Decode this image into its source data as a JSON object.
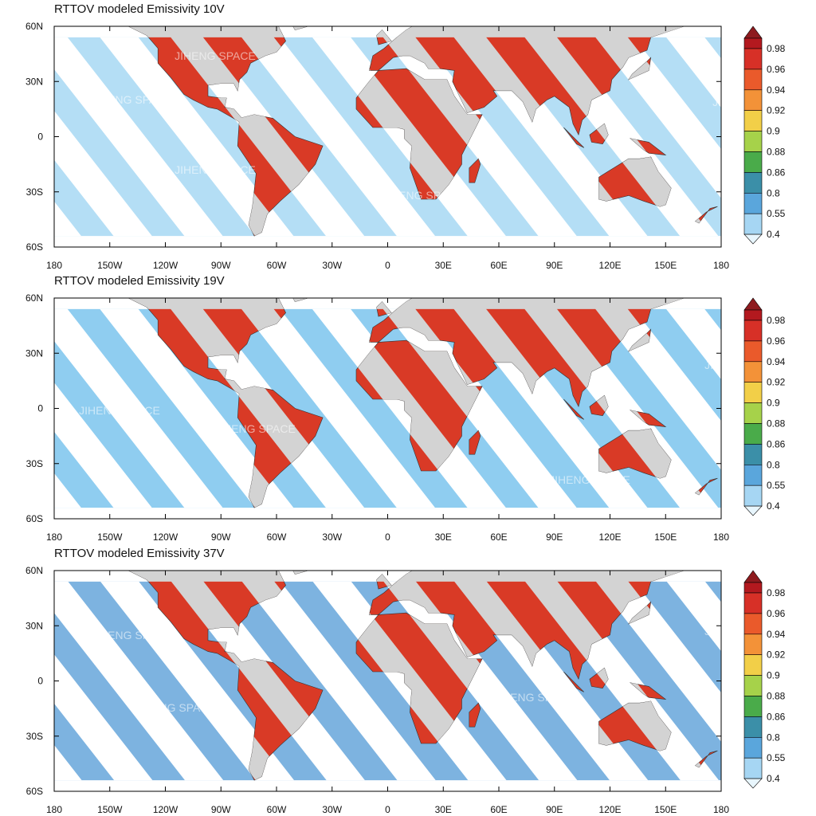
{
  "watermark": "JIHENG SPACE",
  "panels": [
    {
      "title": "RTTOV modeled Emissivity 10V",
      "x_tick_labels": [
        "180",
        "150W",
        "120W",
        "90W",
        "60W",
        "30W",
        "0",
        "30E",
        "60E",
        "90E",
        "120E",
        "150E",
        "180"
      ],
      "y_tick_labels": [
        "60N",
        "30N",
        "0",
        "30S",
        "60S"
      ],
      "colorbar": {
        "labels": [
          "0.98",
          "0.96",
          "0.94",
          "0.92",
          "0.9",
          "0.88",
          "0.86",
          "0.8",
          "0.55",
          "0.4"
        ],
        "colors": [
          "#8e1b1f",
          "#b3191f",
          "#d73027",
          "#ea5a2b",
          "#f39238",
          "#f2cf48",
          "#a6d24a",
          "#4aab4a",
          "#3b8fa8",
          "#5aa6dc",
          "#a6d6f3",
          "#e8f6fd"
        ]
      }
    },
    {
      "title": "RTTOV modeled Emissivity 19V",
      "x_tick_labels": [
        "180",
        "150W",
        "120W",
        "90W",
        "60W",
        "30W",
        "0",
        "30E",
        "60E",
        "90E",
        "120E",
        "150E",
        "180"
      ],
      "y_tick_labels": [
        "60N",
        "30N",
        "0",
        "30S",
        "60S"
      ],
      "colorbar": {
        "labels": [
          "0.98",
          "0.96",
          "0.94",
          "0.92",
          "0.9",
          "0.88",
          "0.86",
          "0.8",
          "0.55",
          "0.4"
        ],
        "colors": [
          "#8e1b1f",
          "#b3191f",
          "#d73027",
          "#ea5a2b",
          "#f39238",
          "#f2cf48",
          "#a6d24a",
          "#4aab4a",
          "#3b8fa8",
          "#5aa6dc",
          "#a6d6f3",
          "#e8f6fd"
        ]
      }
    },
    {
      "title": "RTTOV modeled Emissivity 37V",
      "x_tick_labels": [
        "180",
        "150W",
        "120W",
        "90W",
        "60W",
        "30W",
        "0",
        "30E",
        "60E",
        "90E",
        "120E",
        "150E",
        "180"
      ],
      "y_tick_labels": [
        "60N",
        "30N",
        "0",
        "30S",
        "60S"
      ],
      "colorbar": {
        "labels": [
          "0.98",
          "0.96",
          "0.94",
          "0.92",
          "0.9",
          "0.88",
          "0.86",
          "0.8",
          "0.55",
          "0.4"
        ],
        "colors": [
          "#8e1b1f",
          "#b3191f",
          "#d73027",
          "#ea5a2b",
          "#f39238",
          "#f2cf48",
          "#a6d24a",
          "#4aab4a",
          "#3b8fa8",
          "#5aa6dc",
          "#a6d6f3",
          "#e8f6fd"
        ]
      }
    }
  ]
}
